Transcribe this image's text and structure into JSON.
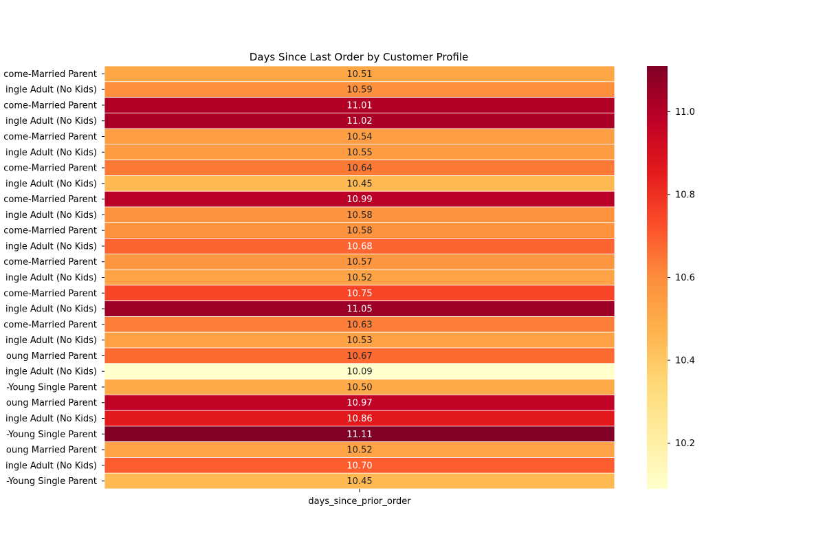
{
  "chart_data": {
    "type": "heatmap",
    "title": "Days Since Last Order by Customer Profile",
    "xlabel": "",
    "ylabel": "",
    "columns": [
      "days_since_prior_order"
    ],
    "rows": [
      "Income-Married Parent",
      "Single Adult (No Kids)",
      "Income-Married Parent",
      "Single Adult (No Kids)",
      "Income-Married Parent",
      "Single Adult (No Kids)",
      "Income-Married Parent",
      "Single Adult (No Kids)",
      "Income-Married Parent",
      "Single Adult (No Kids)",
      "Income-Married Parent",
      "Single Adult (No Kids)",
      "Income-Married Parent",
      "Single Adult (No Kids)",
      "Income-Married Parent",
      "Single Adult (No Kids)",
      "Income-Married Parent",
      "Single Adult (No Kids)",
      "Young Married Parent",
      "Single Adult (No Kids)",
      "Young Single Parent",
      "Young Married Parent",
      "Single Adult (No Kids)",
      "Young Single Parent",
      "Young Married Parent",
      "Single Adult (No Kids)",
      "Young Single Parent"
    ],
    "row_tick_labels": [
      "come-Married Parent",
      "ingle Adult (No Kids)",
      "come-Married Parent",
      "ingle Adult (No Kids)",
      "come-Married Parent",
      "ingle Adult (No Kids)",
      "come-Married Parent",
      "ingle Adult (No Kids)",
      "come-Married Parent",
      "ingle Adult (No Kids)",
      "come-Married Parent",
      "ingle Adult (No Kids)",
      "come-Married Parent",
      "ingle Adult (No Kids)",
      "come-Married Parent",
      "ingle Adult (No Kids)",
      "come-Married Parent",
      "ingle Adult (No Kids)",
      "oung Married Parent",
      "ingle Adult (No Kids)",
      "-Young Single Parent",
      "oung Married Parent",
      "ingle Adult (No Kids)",
      "-Young Single Parent",
      "oung Married Parent",
      "ingle Adult (No Kids)",
      "-Young Single Parent"
    ],
    "values": [
      10.51,
      10.59,
      11.01,
      11.02,
      10.54,
      10.55,
      10.64,
      10.45,
      10.99,
      10.58,
      10.58,
      10.68,
      10.57,
      10.52,
      10.75,
      11.05,
      10.63,
      10.53,
      10.67,
      10.09,
      10.5,
      10.97,
      10.86,
      11.11,
      10.52,
      10.7,
      10.45
    ],
    "value_format": "0.00",
    "colormap": "YlOrRd",
    "vmin": 10.09,
    "vmax": 11.11,
    "colorbar_ticks": [
      "10.2",
      "10.4",
      "10.6",
      "10.8",
      "11.0"
    ],
    "colors": {
      "cmap_stops": [
        "#ffffcc",
        "#ffeda0",
        "#fed976",
        "#feb24c",
        "#fd8d3c",
        "#fc4e2a",
        "#e31a1c",
        "#bd0026",
        "#800026"
      ],
      "text_dark": "#262626",
      "text_light": "#ffffff",
      "cell_border": "#ffffff",
      "axis": "#000000"
    }
  }
}
